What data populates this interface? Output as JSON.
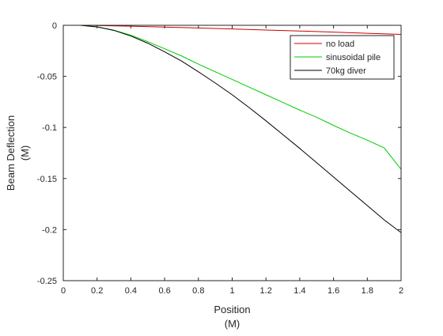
{
  "chart_data": {
    "type": "line",
    "xlabel": [
      "Position",
      "(M)"
    ],
    "ylabel": [
      "Beam Deflection",
      "(M)"
    ],
    "xlim": [
      0,
      2
    ],
    "ylim": [
      -0.25,
      0
    ],
    "xticks": [
      0,
      0.2,
      0.4,
      0.6,
      0.8,
      1,
      1.2,
      1.4,
      1.6,
      1.8,
      2
    ],
    "xtick_labels": [
      "0",
      "0.2",
      "0.4",
      "0.6",
      "0.8",
      "1",
      "1.2",
      "1.4",
      "1.6",
      "1.8",
      "2"
    ],
    "yticks": [
      0,
      -0.05,
      -0.1,
      -0.15,
      -0.2,
      -0.25
    ],
    "ytick_labels": [
      "0",
      "-0.05",
      "-0.1",
      "-0.15",
      "-0.2",
      "-0.25"
    ],
    "grid": false,
    "legend_position": "top-right",
    "series": [
      {
        "name": "no load",
        "color": "#cc0000",
        "x": [
          0.1,
          0.2,
          0.4,
          0.6,
          0.8,
          1.0,
          1.2,
          1.4,
          1.6,
          1.8,
          2.0
        ],
        "y": [
          0,
          -0.0002,
          -0.0009,
          -0.0017,
          -0.0026,
          -0.0036,
          -0.0046,
          -0.0056,
          -0.0067,
          -0.0078,
          -0.0089
        ]
      },
      {
        "name": "sinusoidal pile",
        "color": "#00cc00",
        "x": [
          0.1,
          0.2,
          0.3,
          0.4,
          0.5,
          0.6,
          0.7,
          0.8,
          0.9,
          1.0,
          1.1,
          1.2,
          1.3,
          1.4,
          1.5,
          1.6,
          1.7,
          1.8,
          1.9,
          2.0
        ],
        "y": [
          0,
          -0.0015,
          -0.0048,
          -0.0097,
          -0.016,
          -0.023,
          -0.03,
          -0.038,
          -0.0455,
          -0.053,
          -0.0605,
          -0.068,
          -0.0755,
          -0.083,
          -0.09,
          -0.098,
          -0.1055,
          -0.1125,
          -0.12,
          -0.141
        ]
      },
      {
        "name": "70kg diver",
        "color": "#000000",
        "x": [
          0.1,
          0.2,
          0.3,
          0.4,
          0.5,
          0.6,
          0.7,
          0.8,
          0.9,
          1.0,
          1.1,
          1.2,
          1.3,
          1.4,
          1.5,
          1.6,
          1.7,
          1.8,
          1.9,
          2.0
        ],
        "y": [
          0,
          -0.0015,
          -0.005,
          -0.0105,
          -0.0175,
          -0.026,
          -0.035,
          -0.0455,
          -0.0565,
          -0.068,
          -0.0805,
          -0.0935,
          -0.107,
          -0.1205,
          -0.1345,
          -0.1485,
          -0.1625,
          -0.1765,
          -0.1905,
          -0.203
        ]
      }
    ]
  }
}
